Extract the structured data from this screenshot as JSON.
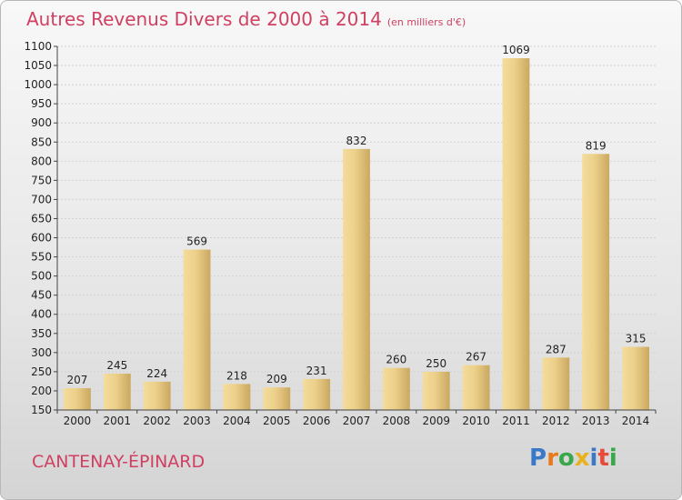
{
  "header": {
    "title": "Autres Revenus Divers de 2000 à 2014",
    "subtitle": "(en milliers d'€)"
  },
  "footer": {
    "city": "CANTENAY-ÉPINARD",
    "logo_letters": [
      "P",
      "r",
      "o",
      "x",
      "i",
      "t",
      "i"
    ],
    "logo_colors": [
      "#3a78c8",
      "#e87a1e",
      "#3aa84a",
      "#e8b21e",
      "#3a78c8",
      "#e84a3a",
      "#3aa84a"
    ]
  },
  "chart_data": {
    "type": "bar",
    "categories": [
      "2000",
      "2001",
      "2002",
      "2003",
      "2004",
      "2005",
      "2006",
      "2007",
      "2008",
      "2009",
      "2010",
      "2011",
      "2012",
      "2013",
      "2014"
    ],
    "values": [
      207,
      245,
      224,
      569,
      218,
      209,
      231,
      832,
      260,
      250,
      267,
      1069,
      287,
      819,
      315
    ],
    "ylim": [
      150,
      1100
    ],
    "yticks": [
      150,
      200,
      250,
      300,
      350,
      400,
      450,
      500,
      550,
      600,
      650,
      700,
      750,
      800,
      850,
      900,
      950,
      1000,
      1050,
      1100
    ],
    "grid": true,
    "bar_color": "#e8c878"
  }
}
